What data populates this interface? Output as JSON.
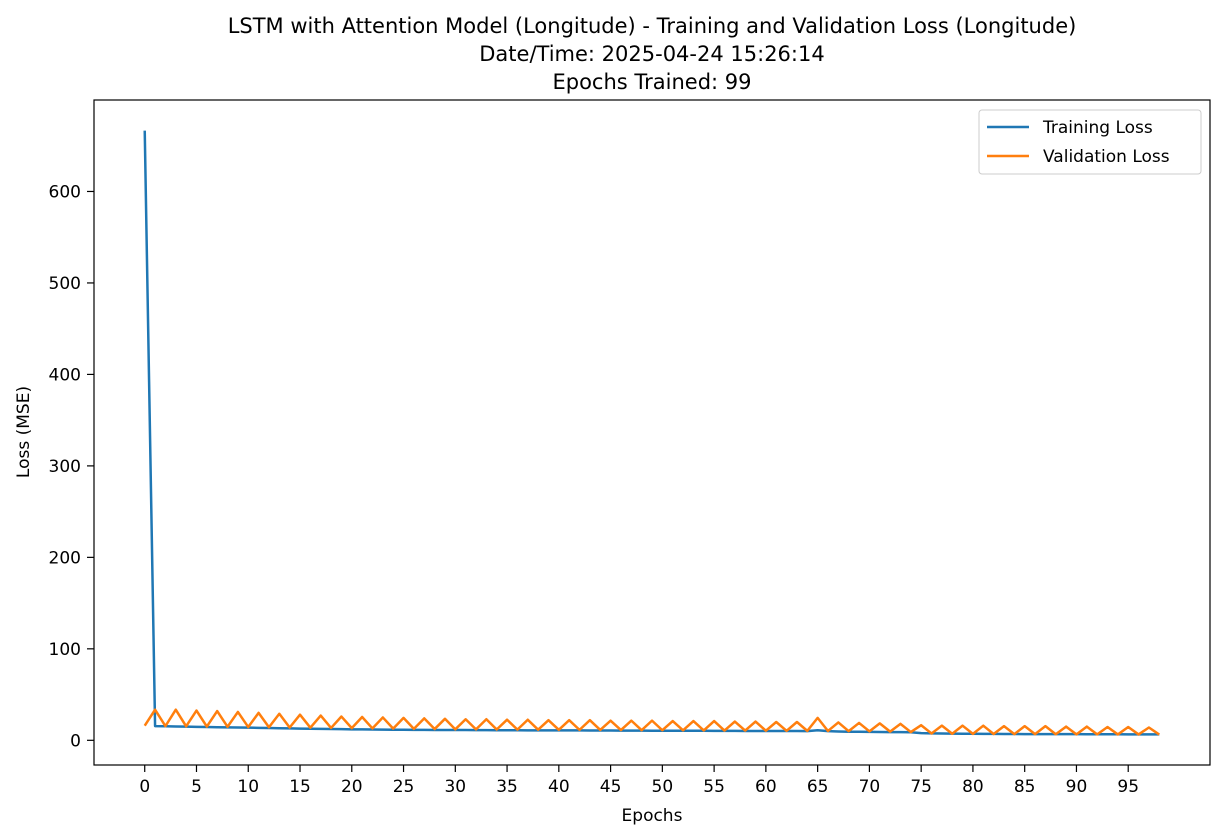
{
  "chart_data": {
    "type": "line",
    "title_lines": [
      "LSTM with Attention Model (Longitude) - Training and Validation Loss (Longitude)",
      "Date/Time: 2025-04-24 15:26:14",
      "Epochs Trained: 99"
    ],
    "xlabel": "Epochs",
    "ylabel": "Loss (MSE)",
    "xlim": [
      -4.9,
      102.9
    ],
    "ylim": [
      -27,
      700
    ],
    "xticks": [
      0,
      5,
      10,
      15,
      20,
      25,
      30,
      35,
      40,
      45,
      50,
      55,
      60,
      65,
      70,
      75,
      80,
      85,
      90,
      95
    ],
    "yticks": [
      0,
      100,
      200,
      300,
      400,
      500,
      600
    ],
    "legend_position": "top-right",
    "series": [
      {
        "name": "Training Loss",
        "color": "#1f77b4",
        "values": [
          666.5,
          15.5,
          15.3,
          15.1,
          14.9,
          14.7,
          14.5,
          14.3,
          14.1,
          14.0,
          13.8,
          13.6,
          13.4,
          13.2,
          13.0,
          12.8,
          12.7,
          12.5,
          12.3,
          12.2,
          12.0,
          11.9,
          11.8,
          11.7,
          11.6,
          11.5,
          11.4,
          11.4,
          11.3,
          11.3,
          11.2,
          11.2,
          11.1,
          11.1,
          11.0,
          11.0,
          11.0,
          10.9,
          10.9,
          10.9,
          10.8,
          10.8,
          10.8,
          10.7,
          10.7,
          10.7,
          10.6,
          10.6,
          10.6,
          10.5,
          10.5,
          10.5,
          10.4,
          10.4,
          10.4,
          10.3,
          10.3,
          10.3,
          10.2,
          10.2,
          10.2,
          10.1,
          10.1,
          10.1,
          10.0,
          11.0,
          10.0,
          9.6,
          9.4,
          9.3,
          9.2,
          9.1,
          9.0,
          8.9,
          8.8,
          7.8,
          7.6,
          7.4,
          7.3,
          7.2,
          7.1,
          7.0,
          7.0,
          6.9,
          6.9,
          6.8,
          6.8,
          6.8,
          6.7,
          6.7,
          6.7,
          6.6,
          6.6,
          6.6,
          6.6,
          6.5,
          6.5,
          6.5,
          6.5
        ]
      },
      {
        "name": "Validation Loss",
        "color": "#ff7f0e",
        "values": [
          16.0,
          33.5,
          15.5,
          33.5,
          15.3,
          32.5,
          15.0,
          32.0,
          14.8,
          31.0,
          14.5,
          30.0,
          14.3,
          29.0,
          14.0,
          28.0,
          13.8,
          27.0,
          13.5,
          26.0,
          13.3,
          25.5,
          13.0,
          25.0,
          12.8,
          24.5,
          12.5,
          24.0,
          12.3,
          23.5,
          12.0,
          23.0,
          11.9,
          23.0,
          11.8,
          22.5,
          11.7,
          22.5,
          11.6,
          22.0,
          11.5,
          22.0,
          11.4,
          22.0,
          11.3,
          21.5,
          11.2,
          21.5,
          11.1,
          21.5,
          11.0,
          21.0,
          10.9,
          21.0,
          10.8,
          21.0,
          10.7,
          20.5,
          10.6,
          20.5,
          10.5,
          20.0,
          10.4,
          20.0,
          10.3,
          24.5,
          10.2,
          19.5,
          10.0,
          19.0,
          9.8,
          18.5,
          9.5,
          18.0,
          9.0,
          16.5,
          7.5,
          16.0,
          7.2,
          16.0,
          7.0,
          16.0,
          6.9,
          15.5,
          6.8,
          15.5,
          6.7,
          15.5,
          6.6,
          15.0,
          6.5,
          15.0,
          6.5,
          14.5,
          6.4,
          14.5,
          6.4,
          14.0,
          6.3
        ]
      }
    ]
  }
}
